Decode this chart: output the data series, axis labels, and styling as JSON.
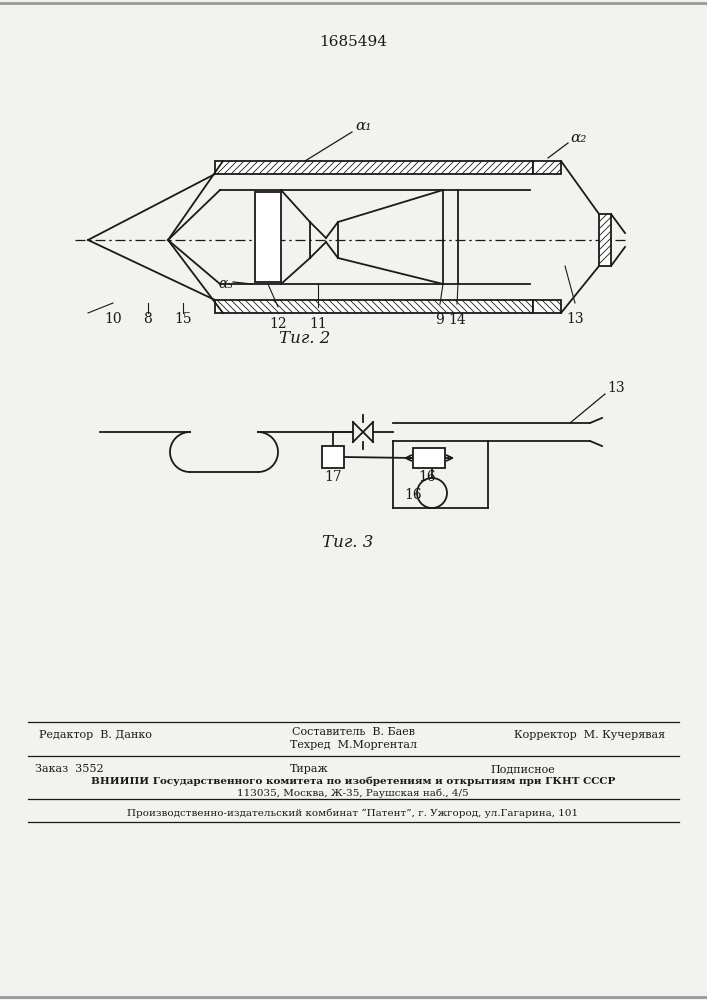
{
  "patent_number": "1685494",
  "fig2_caption": "Τиг. 2",
  "fig3_caption": "Τиг. 3",
  "alpha1": "α₁",
  "alpha2": "α₂",
  "alpha3": "α₃",
  "label_10": "10",
  "label_8": "8",
  "label_15": "15",
  "label_12": "12",
  "label_11": "11",
  "label_9": "9",
  "label_14": "14",
  "label_13_fig2": "13",
  "label_17": "17",
  "label_16a": "16",
  "label_16b": "16",
  "label_13_fig3": "13",
  "footer_editor": "Редактор  В. Данко",
  "footer_composer": "Составитель  В. Баев",
  "footer_techred": "Техред  М.Моргентал",
  "footer_corrector": "Корректор  М. Кучерявая",
  "footer_order": "Заказ  3552",
  "footer_tirazh": "Тираж",
  "footer_podpisnoe": "Подписное",
  "footer_vniipii": "ВНИИПИ Государственного комитета по изобретениям и открытиям при ГКНТ СССР",
  "footer_address": "113035, Москва, Ж-35, Раушская наб., 4/5",
  "footer_patent": "Производственно-издательский комбинат “Патент”, г. Ужгород, ул.Гагарина, 101",
  "line_color": "#1a1a1a",
  "bg_color": "#f2f2ee"
}
